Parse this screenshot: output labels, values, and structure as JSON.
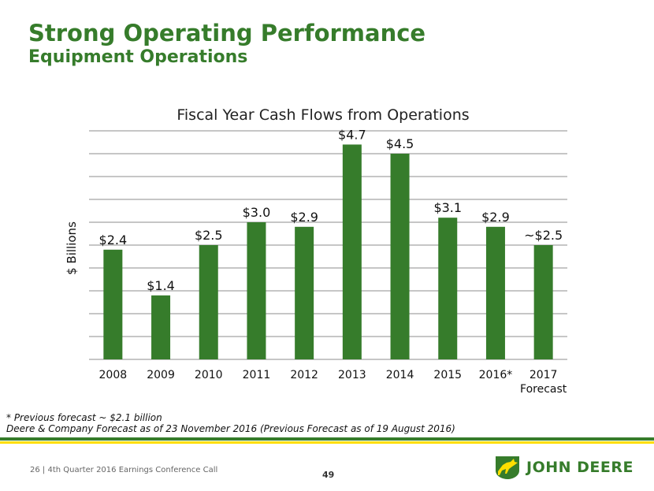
{
  "header": {
    "title": "Strong Operating Performance",
    "subtitle": "Equipment Operations"
  },
  "chart_data": {
    "type": "bar",
    "title": "Fiscal Year Cash Flows from Operations",
    "ylabel": "$ Billions",
    "xlabel": "",
    "ylim": [
      0,
      5
    ],
    "y_gridline_step": 0.5,
    "categories": [
      {
        "label": "2008",
        "sub": ""
      },
      {
        "label": "2009",
        "sub": ""
      },
      {
        "label": "2010",
        "sub": ""
      },
      {
        "label": "2011",
        "sub": ""
      },
      {
        "label": "2012",
        "sub": ""
      },
      {
        "label": "2013",
        "sub": ""
      },
      {
        "label": "2014",
        "sub": ""
      },
      {
        "label": "2015",
        "sub": ""
      },
      {
        "label": "2016*",
        "sub": ""
      },
      {
        "label": "2017",
        "sub": "Forecast"
      }
    ],
    "values": [
      2.4,
      1.4,
      2.5,
      3.0,
      2.9,
      4.7,
      4.5,
      3.1,
      2.9,
      2.5
    ],
    "data_labels": [
      "$2.4",
      "$1.4",
      "$2.5",
      "$3.0",
      "$2.9",
      "$4.7",
      "$4.5",
      "$3.1",
      "$2.9",
      "~$2.5"
    ],
    "bar_color": "#367c2b"
  },
  "footnotes": {
    "line1": "* Previous forecast ~ $2.1 billion",
    "line2": "Deere & Company Forecast as of 23 November 2016 (Previous Forecast as of 19 August 2016)"
  },
  "footer": {
    "text": "26  |  4th Quarter 2016 Earnings Conference Call",
    "page_number": "49",
    "brand": "JOHN DEERE"
  },
  "colors": {
    "brand_green": "#367c2b",
    "brand_yellow": "#ffde00"
  }
}
